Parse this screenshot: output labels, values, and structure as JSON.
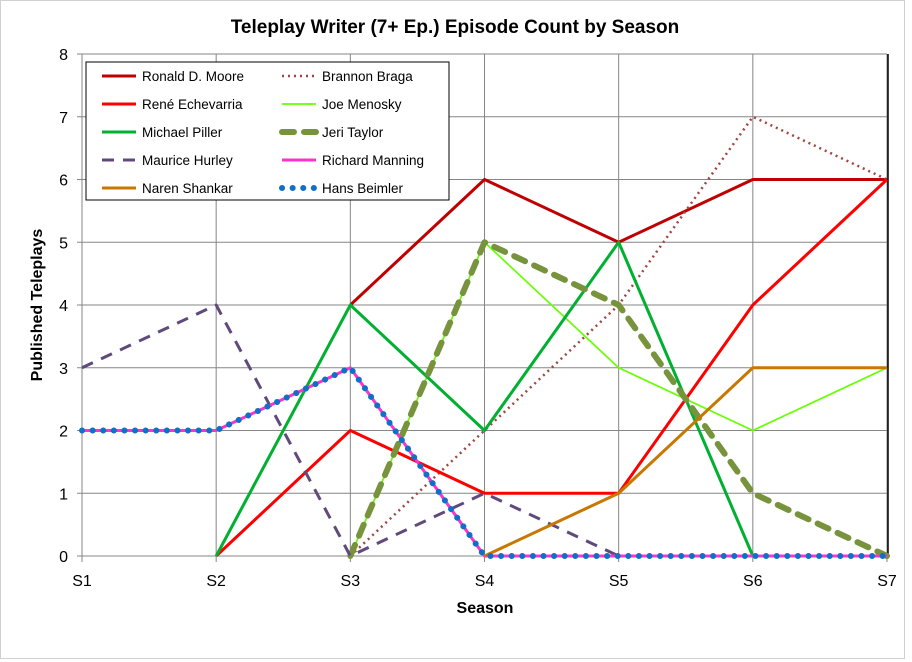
{
  "chart_data": {
    "type": "line",
    "title": "Teleplay Writer (7+ Ep.) Episode Count by Season",
    "xlabel": "Season",
    "ylabel": "Published Teleplays",
    "categories": [
      "S1",
      "S2",
      "S3",
      "S4",
      "S5",
      "S6",
      "S7"
    ],
    "ylim": [
      0,
      8
    ],
    "yticks": [
      "0",
      "1",
      "2",
      "3",
      "4",
      "5",
      "6",
      "7",
      "8"
    ],
    "grid": true,
    "legend_position": "top-left",
    "series": [
      {
        "name": "Ronald D. Moore",
        "color": "#C00000",
        "style": "solid",
        "values": [
          null,
          null,
          4,
          6,
          5,
          6,
          6
        ]
      },
      {
        "name": "Brannon Braga",
        "color": "#A0453F",
        "style": "dotted",
        "values": [
          null,
          null,
          0,
          2,
          4,
          7,
          6
        ]
      },
      {
        "name": "René Echevarria",
        "color": "#FF0000",
        "style": "solid",
        "values": [
          null,
          0,
          2,
          1,
          1,
          4,
          6
        ]
      },
      {
        "name": "Joe Menosky",
        "color": "#66FF00",
        "style": "thin",
        "values": [
          null,
          null,
          0,
          5,
          3,
          2,
          3
        ]
      },
      {
        "name": "Michael Piller",
        "color": "#00B030",
        "style": "solid",
        "values": [
          null,
          0,
          4,
          2,
          5,
          0,
          null
        ]
      },
      {
        "name": "Jeri Taylor",
        "color": "#77933C",
        "style": "thickdash",
        "values": [
          null,
          null,
          0,
          5,
          4,
          1,
          0
        ]
      },
      {
        "name": "Maurice Hurley",
        "color": "#604A7B",
        "style": "dash",
        "values": [
          3,
          4,
          0,
          1,
          0,
          0,
          0
        ]
      },
      {
        "name": "Richard Manning",
        "color": "#FF33CC",
        "style": "solid",
        "values": [
          2,
          2,
          3,
          0,
          0,
          0,
          0
        ]
      },
      {
        "name": "Naren Shankar",
        "color": "#C87800",
        "style": "solid",
        "values": [
          null,
          null,
          null,
          0,
          1,
          3,
          3
        ]
      },
      {
        "name": "Hans Beimler",
        "color": "#1070C8",
        "style": "rounddot",
        "values": [
          2,
          2,
          3,
          0,
          0,
          0,
          0
        ]
      }
    ]
  }
}
